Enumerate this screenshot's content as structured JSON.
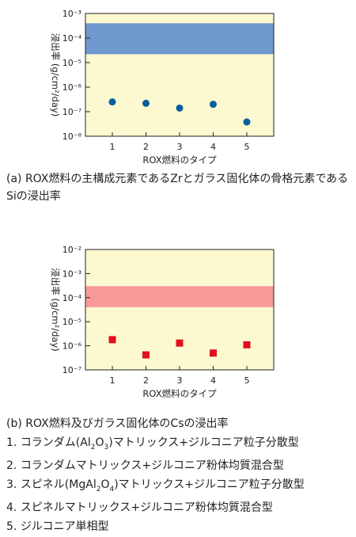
{
  "chart_data": [
    {
      "type": "scatter",
      "xlabel": "ROX燃料のタイプ",
      "ylabel": "浸出率 (g/cm²/day)",
      "x_ticks": [
        "1",
        "2",
        "3",
        "4",
        "5"
      ],
      "y_ticks": [
        "10⁻³",
        "10⁻⁴",
        "10⁻⁵",
        "10⁻⁶",
        "10⁻⁷",
        "10⁻⁸"
      ],
      "yscale": "log",
      "ylim": [
        1e-08,
        0.001
      ],
      "xlim": [
        0.2,
        5.8
      ],
      "band": {
        "from": 2.2e-05,
        "to": 0.0004,
        "color": "#6f99cf"
      },
      "marker": "circle",
      "marker_color": "#0a5fa0",
      "background": "#fcf8d0",
      "series": [
        {
          "x": [
            1,
            2,
            3,
            4,
            5
          ],
          "values": [
            2.5e-07,
            2.2e-07,
            1.4e-07,
            2e-07,
            3.8e-08
          ]
        }
      ]
    },
    {
      "type": "scatter",
      "xlabel": "ROX燃料のタイプ",
      "ylabel": "浸出率 (g/cm²/day)",
      "x_ticks": [
        "1",
        "2",
        "3",
        "4",
        "5"
      ],
      "y_ticks": [
        "10⁻²",
        "10⁻³",
        "10⁻⁴",
        "10⁻⁵",
        "10⁻⁶",
        "10⁻⁷"
      ],
      "yscale": "log",
      "ylim": [
        1e-07,
        0.01
      ],
      "xlim": [
        0.2,
        5.8
      ],
      "band": {
        "from": 4e-05,
        "to": 0.0003,
        "color": "#f89a9a"
      },
      "marker": "square",
      "marker_color": "#e0101e",
      "background": "#fcf8d0",
      "series": [
        {
          "x": [
            1,
            2,
            3,
            4,
            5
          ],
          "values": [
            1.8e-06,
            4.2e-07,
            1.3e-06,
            5e-07,
            1.1e-06
          ]
        }
      ]
    }
  ],
  "captions": {
    "a": "(a) ROX燃料の主構成元素であるZrとガラス固化体の骨格元素であるSiの浸出率",
    "b": "(b) ROX燃料及びガラス固化体のCsの浸出率"
  },
  "legend": [
    {
      "num": "1.",
      "pre": "コランダム(Al",
      "s1": "2",
      "mid": "O",
      "s2": "3",
      "post": ")マトリックス+ジルコニア粒子分散型"
    },
    {
      "num": "2.",
      "text": "コランダムマトリックス+ジルコニア粉体均質混合型"
    },
    {
      "num": "3.",
      "pre": "スピネル(MgAl",
      "s1": "2",
      "mid": "O",
      "s2": "4",
      "post": ")マトリックス+ジルコニア粒子分散型"
    },
    {
      "num": "4.",
      "text": "スピネルマトリックス+ジルコニア粉体均質混合型"
    },
    {
      "num": "5.",
      "text": "ジルコニア単相型"
    }
  ]
}
